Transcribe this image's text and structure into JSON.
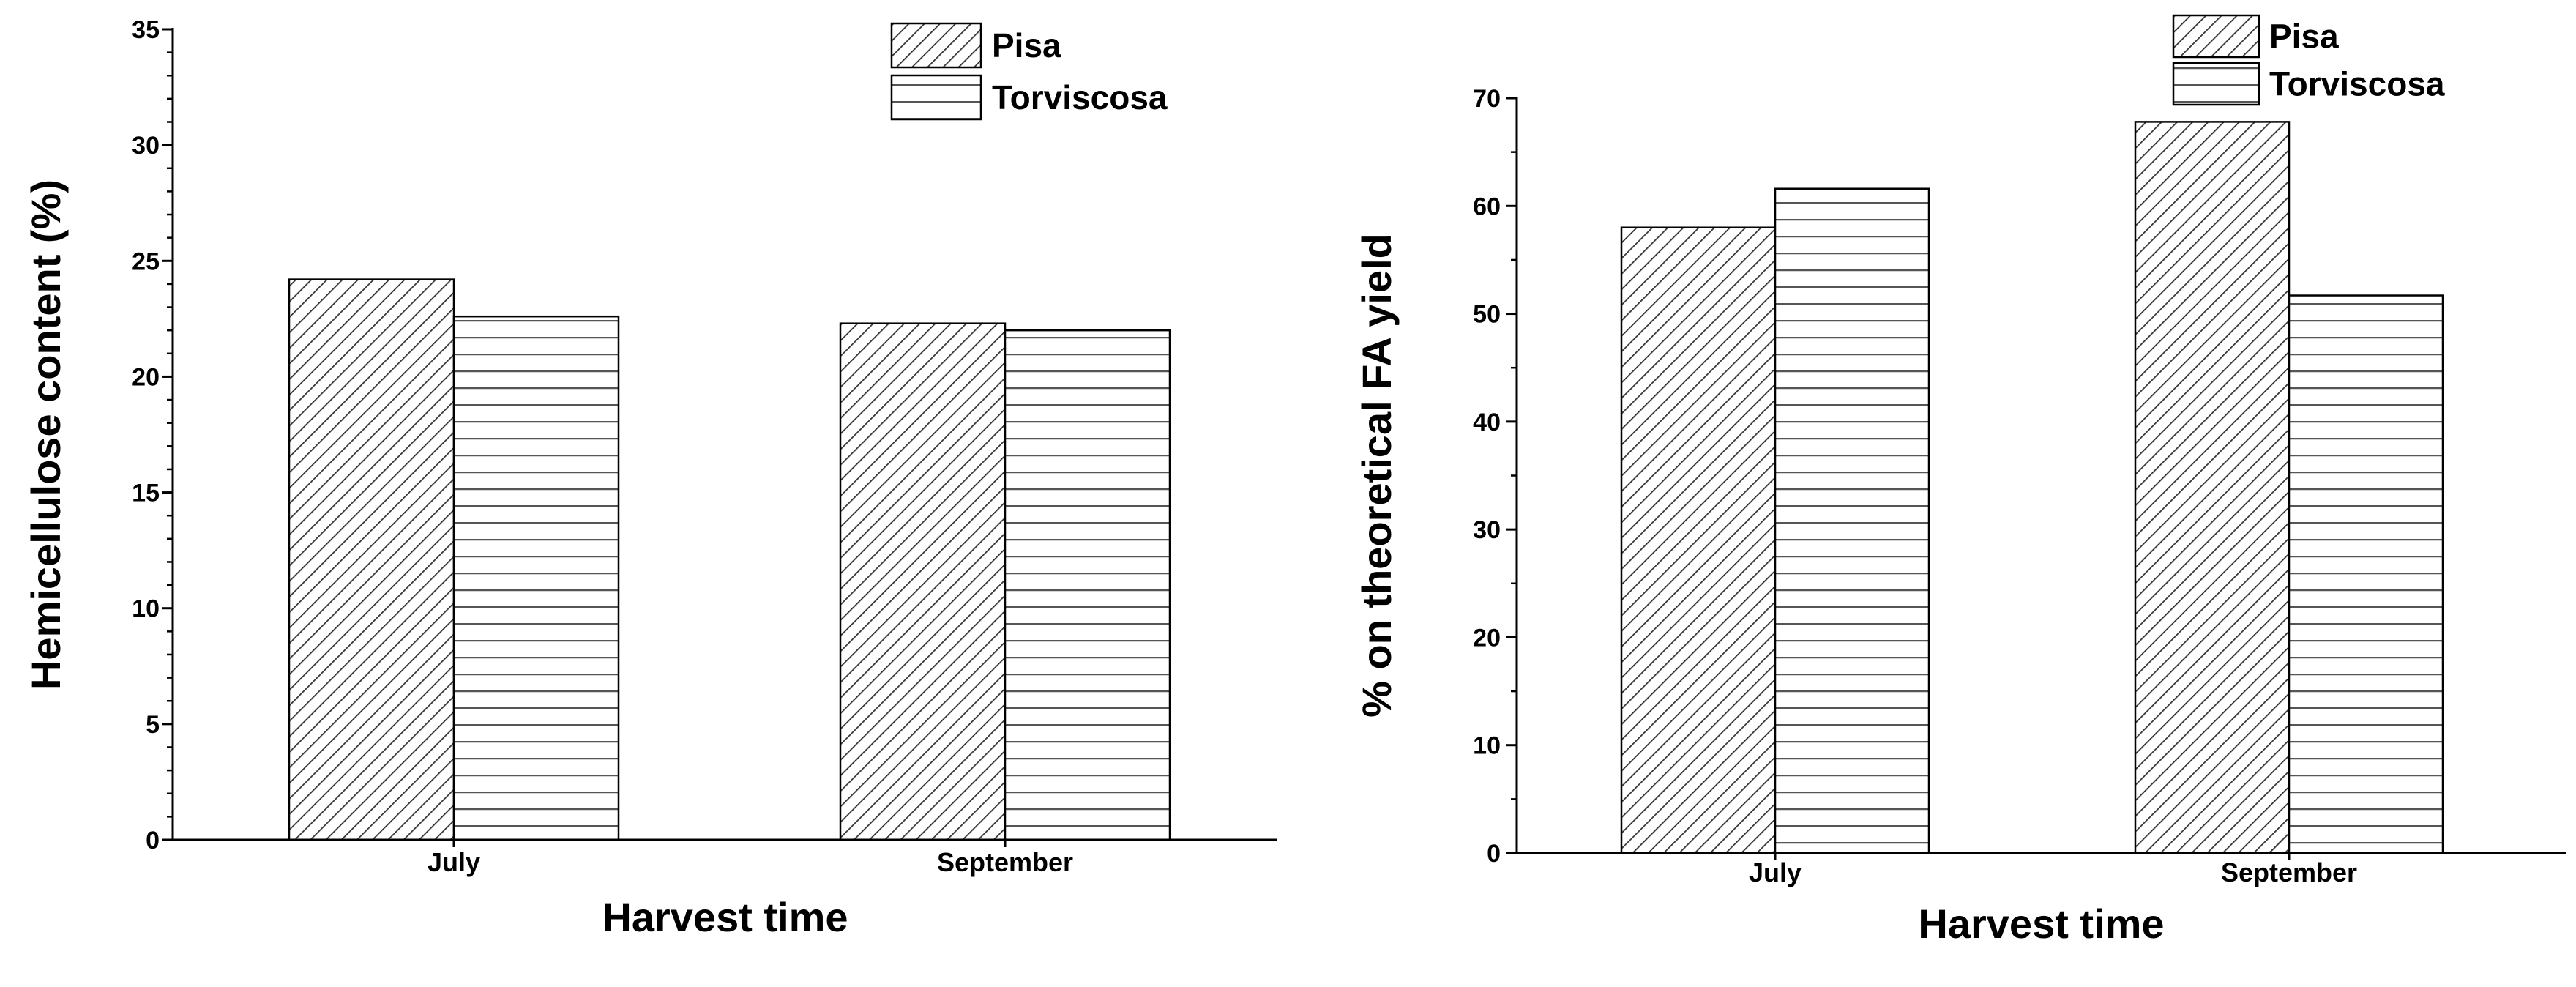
{
  "chart_data": [
    {
      "type": "bar",
      "title": "",
      "categories": [
        "July",
        "September"
      ],
      "series": [
        {
          "name": "Pisa",
          "values": [
            24.2,
            22.3
          ],
          "pattern": "diagonal"
        },
        {
          "name": "Torviscosa",
          "values": [
            22.6,
            22.0
          ],
          "pattern": "horizontal"
        }
      ],
      "xlabel": "Harvest time",
      "ylabel": "Hemicellulose content (%)",
      "ylim": [
        0,
        35
      ],
      "yticks": [
        "0",
        "5",
        "10",
        "15",
        "20",
        "25",
        "30",
        "35"
      ],
      "grid": false,
      "legend_position": "top-right"
    },
    {
      "type": "bar",
      "title": "",
      "categories": [
        "July",
        "September"
      ],
      "series": [
        {
          "name": "Pisa",
          "values": [
            58.0,
            67.8
          ],
          "pattern": "diagonal"
        },
        {
          "name": "Torviscosa",
          "values": [
            61.6,
            51.7
          ],
          "pattern": "horizontal"
        }
      ],
      "xlabel": "Harvest time",
      "ylabel": "% on theoretical FA yield",
      "ylim": [
        0,
        70
      ],
      "yticks": [
        "0",
        "10",
        "20",
        "30",
        "40",
        "50",
        "60",
        "70"
      ],
      "grid": false,
      "legend_position": "top-right"
    }
  ]
}
